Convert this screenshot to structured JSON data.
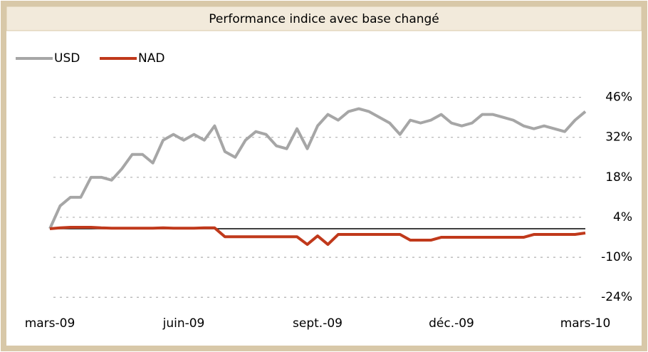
{
  "chart_data": {
    "type": "line",
    "title": "Performance indice avec base changé",
    "categories": [
      "mars-09",
      null,
      null,
      null,
      null,
      null,
      null,
      null,
      null,
      null,
      null,
      null,
      null,
      "juin-09",
      null,
      null,
      null,
      null,
      null,
      null,
      null,
      null,
      null,
      null,
      null,
      null,
      "sept.-09",
      null,
      null,
      null,
      null,
      null,
      null,
      null,
      null,
      null,
      null,
      null,
      null,
      "déc.-09",
      null,
      null,
      null,
      null,
      null,
      null,
      null,
      null,
      null,
      null,
      null,
      null,
      "mars-10"
    ],
    "series": [
      {
        "name": "USD",
        "color": "#a6a6a6",
        "values": [
          0,
          8,
          11,
          11,
          18,
          18,
          17,
          21,
          26,
          26,
          23,
          31,
          33,
          31,
          33,
          31,
          36,
          27,
          25,
          31,
          34,
          33,
          29,
          28,
          35,
          28,
          36,
          40,
          38,
          41,
          42,
          41,
          39,
          37,
          33,
          38,
          37,
          38,
          40,
          37,
          36,
          37,
          40,
          40,
          39,
          38,
          36,
          35,
          36,
          35,
          34,
          38,
          41
        ]
      },
      {
        "name": "NAD",
        "color": "#c0391b",
        "values": [
          0,
          0.3,
          0.5,
          0.5,
          0.5,
          0.3,
          0.2,
          0.2,
          0.2,
          0.2,
          0.2,
          0.3,
          0.2,
          0.2,
          0.2,
          0.3,
          0.3,
          -2.8,
          -2.8,
          -2.8,
          -2.8,
          -2.8,
          -2.8,
          -2.8,
          -2.8,
          -5.5,
          -2.5,
          -5.5,
          -2,
          -2,
          -2,
          -2,
          -2,
          -2,
          -2,
          -4,
          -4,
          -4,
          -3,
          -3,
          -3,
          -3,
          -3,
          -3,
          -3,
          -3,
          -3,
          -2,
          -2,
          -2,
          -2,
          -2,
          -1.5
        ]
      }
    ],
    "ylim": [
      -26,
      48
    ],
    "yticks": [
      {
        "value": 46,
        "label": "46%"
      },
      {
        "value": 32,
        "label": "32%"
      },
      {
        "value": 18,
        "label": "18%"
      },
      {
        "value": 4,
        "label": "4%"
      },
      {
        "value": -10,
        "label": "-10%"
      },
      {
        "value": -24,
        "label": "-24%"
      }
    ],
    "grid": true,
    "legend": "top-left"
  }
}
